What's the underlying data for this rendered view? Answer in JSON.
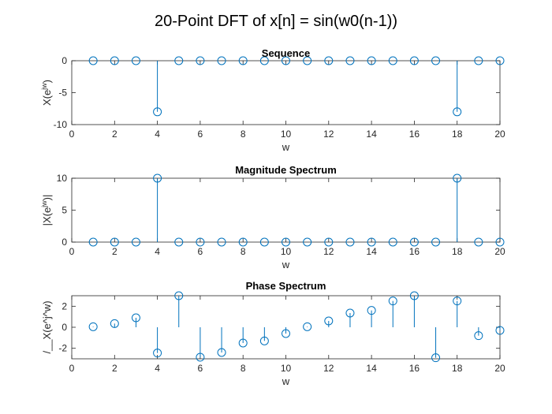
{
  "figure": {
    "title": "20-Point DFT of x[n] = sin(w0(n-1))"
  },
  "chart_data": [
    {
      "type": "stem",
      "title": "Sequence",
      "xlabel": "w",
      "ylabel": "X(e^jw)",
      "xlim": [
        0,
        20
      ],
      "ylim": [
        -10,
        0
      ],
      "xticks": [
        0,
        2,
        4,
        6,
        8,
        10,
        12,
        14,
        16,
        18,
        20
      ],
      "yticks": [
        -10,
        -5,
        0
      ],
      "color": "#0072bd",
      "x": [
        1,
        2,
        3,
        4,
        5,
        6,
        7,
        8,
        9,
        10,
        11,
        12,
        13,
        14,
        15,
        16,
        17,
        18,
        19,
        20
      ],
      "y": [
        0,
        0,
        0,
        -8,
        0,
        0,
        0,
        0,
        0,
        0,
        0,
        0,
        0,
        0,
        0,
        0,
        0,
        -8,
        0,
        0
      ]
    },
    {
      "type": "stem",
      "title": "Magnitude Spectrum",
      "xlabel": "w",
      "ylabel": "|X(e^jw)|",
      "xlim": [
        0,
        20
      ],
      "ylim": [
        0,
        10
      ],
      "xticks": [
        0,
        2,
        4,
        6,
        8,
        10,
        12,
        14,
        16,
        18,
        20
      ],
      "yticks": [
        0,
        5,
        10
      ],
      "color": "#0072bd",
      "x": [
        1,
        2,
        3,
        4,
        5,
        6,
        7,
        8,
        9,
        10,
        11,
        12,
        13,
        14,
        15,
        16,
        17,
        18,
        19,
        20
      ],
      "y": [
        0,
        0,
        0,
        10,
        0,
        0,
        0,
        0,
        0,
        0,
        0,
        0,
        0,
        0,
        0,
        0,
        0,
        10,
        0,
        0
      ]
    },
    {
      "type": "stem",
      "title": "Phase Spectrum",
      "xlabel": "w",
      "ylabel": "/__X(e^j^w)",
      "xlim": [
        0,
        20
      ],
      "ylim": [
        -3,
        3
      ],
      "xticks": [
        0,
        2,
        4,
        6,
        8,
        10,
        12,
        14,
        16,
        18,
        20
      ],
      "yticks": [
        -2,
        0,
        2
      ],
      "color": "#0072bd",
      "x": [
        1,
        2,
        3,
        4,
        5,
        6,
        7,
        8,
        9,
        10,
        11,
        12,
        13,
        14,
        15,
        16,
        17,
        18,
        19,
        20
      ],
      "y": [
        0.05,
        0.35,
        0.9,
        -2.45,
        3.0,
        -2.85,
        -2.4,
        -1.5,
        -1.3,
        -0.6,
        0.05,
        0.6,
        1.35,
        1.6,
        2.5,
        3.0,
        -2.9,
        2.5,
        -0.8,
        -0.3
      ]
    }
  ]
}
